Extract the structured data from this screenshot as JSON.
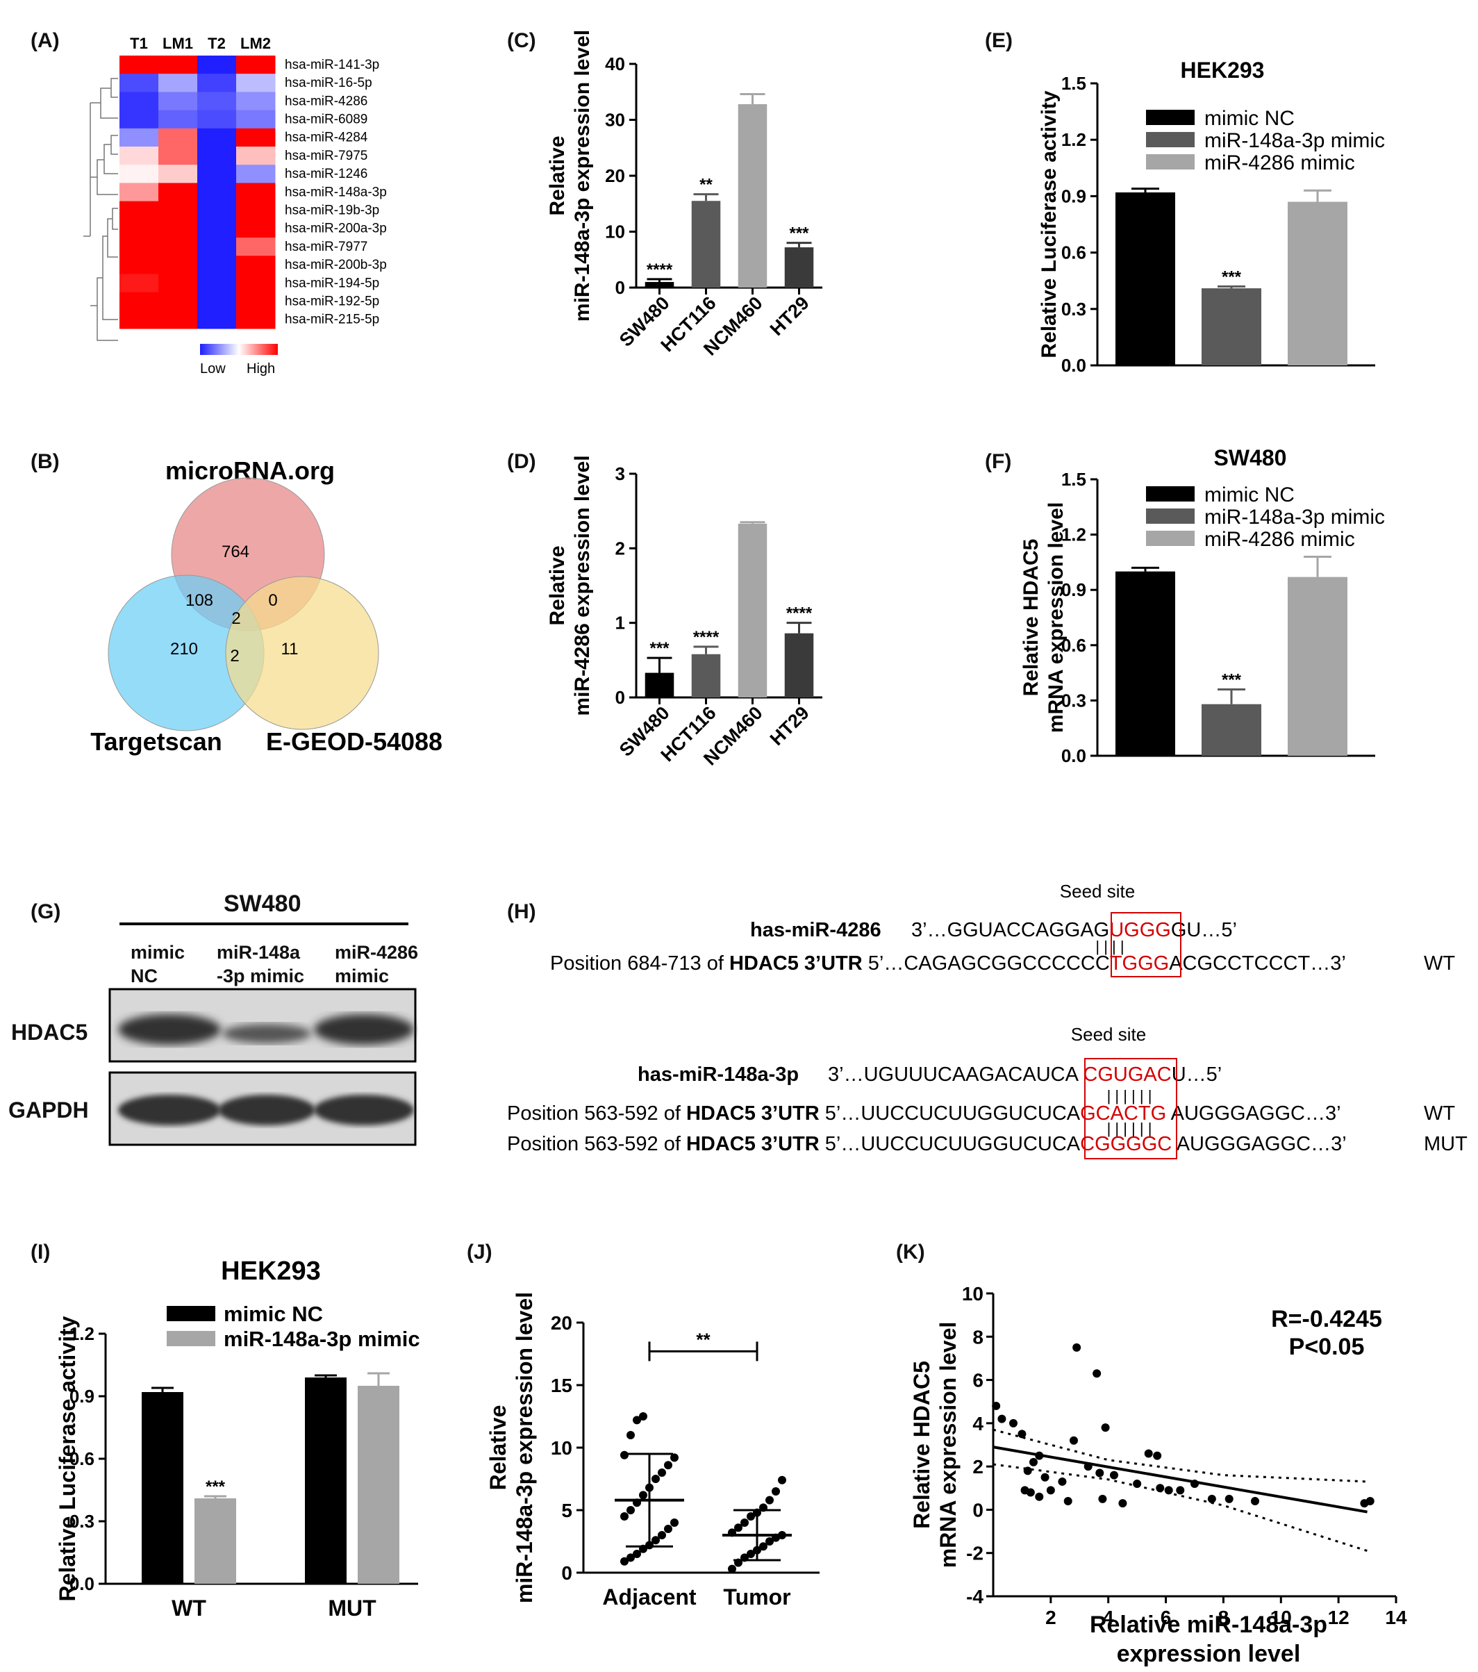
{
  "panel_labels": [
    "(A)",
    "(B)",
    "(C)",
    "(D)",
    "(E)",
    "(F)",
    "(G)",
    "(H)",
    "(I)",
    "(J)",
    "(K)"
  ],
  "colors": {
    "black": "#000000",
    "dark_gray": "#5a5a5a",
    "light_gray": "#a6a6a6",
    "heat_low": "#1f1fff",
    "heat_high": "#ff0000",
    "venn_red": "#e88a8a",
    "venn_blue": "#6ccff6",
    "venn_yellow": "#f5dc8c",
    "seed_red": "#d40000"
  },
  "chart_data": [
    {
      "id": "A",
      "type": "heatmap",
      "columns": [
        "T1",
        "LM1",
        "T2",
        "LM2"
      ],
      "rows": [
        "hsa-miR-141-3p",
        "hsa-miR-16-5p",
        "hsa-miR-4286",
        "hsa-miR-6089",
        "hsa-miR-4284",
        "hsa-miR-7975",
        "hsa-miR-1246",
        "hsa-miR-148a-3p",
        "hsa-miR-19b-3p",
        "hsa-miR-200a-3p",
        "hsa-miR-7977",
        "hsa-miR-200b-3p",
        "hsa-miR-194-5p",
        "hsa-miR-192-5p",
        "hsa-miR-215-5p"
      ],
      "values": [
        [
          1,
          1,
          -1,
          1
        ],
        [
          -0.8,
          -0.4,
          -0.85,
          -0.3
        ],
        [
          -0.9,
          -0.6,
          -0.75,
          -0.5
        ],
        [
          -0.9,
          -0.7,
          -0.8,
          -0.6
        ],
        [
          -0.5,
          0.6,
          -1,
          1
        ],
        [
          0.15,
          0.6,
          -1,
          0.25
        ],
        [
          0.05,
          0.2,
          -1,
          -0.5
        ],
        [
          0.4,
          1,
          -1,
          1
        ],
        [
          1,
          1,
          -1,
          1
        ],
        [
          1,
          1,
          -1,
          1
        ],
        [
          1,
          1,
          -1,
          0.6
        ],
        [
          1,
          1,
          -1,
          1
        ],
        [
          0.9,
          1,
          -1,
          1
        ],
        [
          1,
          1,
          -1,
          1
        ],
        [
          1,
          1,
          -1,
          1
        ]
      ],
      "legend": [
        "Low",
        "High"
      ]
    },
    {
      "id": "B",
      "type": "venn",
      "sets": [
        "microRNA.org",
        "Targetscan",
        "E-GEOD-54088"
      ],
      "regions": {
        "microrna_only": "764",
        "targetscan_only": "210",
        "geo_only": "11",
        "microrna_targetscan": "108",
        "microrna_geo": "0",
        "targetscan_geo": "2",
        "all": "2"
      }
    },
    {
      "id": "C",
      "type": "bar",
      "categories": [
        "SW480",
        "HCT116",
        "NCM460",
        "HT29"
      ],
      "values": [
        1,
        15.5,
        32.8,
        7.2
      ],
      "errors": [
        0.5,
        1.2,
        1.8,
        0.8
      ],
      "significance": [
        "****",
        "**",
        "",
        "***"
      ],
      "ylabel": [
        "Relative",
        "miR-148a-3p expression level"
      ],
      "ylim": [
        0,
        40
      ],
      "yticks": [
        "0",
        "10",
        "20",
        "30",
        "40"
      ]
    },
    {
      "id": "D",
      "type": "bar",
      "categories": [
        "SW480",
        "HCT116",
        "NCM460",
        "HT29"
      ],
      "values": [
        0.33,
        0.58,
        2.33,
        0.86
      ],
      "errors": [
        0.2,
        0.1,
        0.02,
        0.14
      ],
      "significance": [
        "***",
        "****",
        "",
        "****"
      ],
      "ylabel": [
        "Relative",
        "miR-4286 expression level"
      ],
      "ylim": [
        0,
        3
      ],
      "yticks": [
        "0",
        "1",
        "2",
        "3"
      ]
    },
    {
      "id": "E",
      "type": "bar",
      "title": "HEK293",
      "series": [
        {
          "name": "mimic NC",
          "value": 0.92,
          "error": 0.02
        },
        {
          "name": "miR-148a-3p mimic",
          "value": 0.41,
          "error": 0.01
        },
        {
          "name": "miR-4286 mimic",
          "value": 0.87,
          "error": 0.06
        }
      ],
      "significance": [
        "",
        "***",
        ""
      ],
      "ylabel": [
        "Relative Luciferase activity"
      ],
      "ylim": [
        0,
        1.5
      ],
      "yticks": [
        "0.0",
        "0.3",
        "0.6",
        "0.9",
        "1.2",
        "1.5"
      ]
    },
    {
      "id": "F",
      "type": "bar",
      "title": "SW480",
      "series": [
        {
          "name": "mimic NC",
          "value": 1.0,
          "error": 0.02
        },
        {
          "name": "miR-148a-3p mimic",
          "value": 0.28,
          "error": 0.08
        },
        {
          "name": "miR-4286 mimic",
          "value": 0.97,
          "error": 0.11
        }
      ],
      "significance": [
        "",
        "***",
        ""
      ],
      "ylabel": [
        "Relative HDAC5",
        "mRNA expression level"
      ],
      "ylim": [
        0,
        1.5
      ],
      "yticks": [
        "0.0",
        "0.3",
        "0.6",
        "0.9",
        "1.2",
        "1.5"
      ]
    },
    {
      "id": "I",
      "type": "bar",
      "title": "HEK293",
      "categories": [
        "WT",
        "MUT"
      ],
      "series": [
        {
          "name": "mimic  NC",
          "values": [
            0.92,
            0.99
          ],
          "errors": [
            0.02,
            0.01
          ]
        },
        {
          "name": "miR-148a-3p mimic",
          "values": [
            0.41,
            0.95
          ],
          "errors": [
            0.01,
            0.06
          ]
        }
      ],
      "significance": [
        "***",
        ""
      ],
      "ylabel": [
        "Relative Luciferase activity"
      ],
      "ylim": [
        0,
        1.2
      ],
      "yticks": [
        "0.0",
        "0.3",
        "0.6",
        "0.9",
        "1.2"
      ]
    },
    {
      "id": "J",
      "type": "scatter",
      "categories": [
        "Adjacent",
        "Tumor"
      ],
      "groups": [
        {
          "name": "Adjacent",
          "mean": 5.8,
          "sd_low": 2.1,
          "sd_high": 9.5,
          "points": [
            0.9,
            1.2,
            1.5,
            1.9,
            2.2,
            2.6,
            3.0,
            3.5,
            4.0,
            4.5,
            5.0,
            5.6,
            6.2,
            6.8,
            7.5,
            8.0,
            8.6,
            9.2,
            9.4,
            11.0,
            12.2,
            12.5
          ]
        },
        {
          "name": "Tumor",
          "mean": 3.0,
          "sd_low": 1.0,
          "sd_high": 5.0,
          "points": [
            0.3,
            0.8,
            1.2,
            1.5,
            1.8,
            2.1,
            2.5,
            2.8,
            3.0,
            3.2,
            3.6,
            4.0,
            4.5,
            4.8,
            5.2,
            5.8,
            6.5,
            7.4
          ]
        }
      ],
      "significance": "**",
      "ylabel": [
        "Relative",
        "miR-148a-3p expression level"
      ],
      "ylim": [
        0,
        20
      ],
      "yticks": [
        "0",
        "5",
        "10",
        "15",
        "20"
      ]
    },
    {
      "id": "K",
      "type": "scatter",
      "points": [
        [
          0.1,
          4.8
        ],
        [
          0.3,
          4.2
        ],
        [
          0.7,
          4.0
        ],
        [
          1.0,
          3.5
        ],
        [
          1.2,
          1.8
        ],
        [
          1.4,
          2.2
        ],
        [
          1.6,
          2.5
        ],
        [
          1.8,
          1.5
        ],
        [
          2.0,
          0.9
        ],
        [
          1.3,
          0.8
        ],
        [
          1.6,
          0.6
        ],
        [
          1.1,
          0.9
        ],
        [
          2.4,
          1.3
        ],
        [
          2.6,
          0.4
        ],
        [
          2.8,
          3.2
        ],
        [
          2.9,
          7.5
        ],
        [
          3.3,
          2.0
        ],
        [
          3.6,
          6.3
        ],
        [
          3.7,
          1.7
        ],
        [
          3.8,
          0.5
        ],
        [
          3.9,
          3.8
        ],
        [
          4.2,
          1.6
        ],
        [
          4.5,
          0.3
        ],
        [
          5.0,
          1.2
        ],
        [
          5.4,
          2.6
        ],
        [
          5.7,
          2.5
        ],
        [
          5.8,
          1.0
        ],
        [
          6.1,
          0.9
        ],
        [
          6.5,
          0.9
        ],
        [
          7.0,
          1.2
        ],
        [
          7.6,
          0.5
        ],
        [
          8.2,
          0.5
        ],
        [
          9.1,
          0.4
        ],
        [
          12.9,
          0.3
        ],
        [
          13.1,
          0.4
        ]
      ],
      "fit": {
        "x0": 0,
        "y0": 2.9,
        "x1": 13,
        "y1": -0.1
      },
      "ci_upper": [
        [
          0,
          3.7
        ],
        [
          4,
          2.3
        ],
        [
          8,
          1.6
        ],
        [
          13,
          1.3
        ]
      ],
      "ci_lower": [
        [
          0,
          2.1
        ],
        [
          4,
          1.4
        ],
        [
          8,
          0.2
        ],
        [
          13,
          -1.9
        ]
      ],
      "annotations": [
        "R=-0.4245",
        "P<0.05"
      ],
      "xlabel": [
        "Relative  miR-148a-3p",
        "expression level"
      ],
      "ylabel": [
        "Relative HDAC5",
        "mRNA expression level"
      ],
      "xlim": [
        0,
        14
      ],
      "ylim": [
        -4,
        10
      ],
      "xticks": [
        "2",
        "4",
        "6",
        "8",
        "10",
        "12",
        "14"
      ],
      "yticks": [
        "-4",
        "-2",
        "0",
        "2",
        "4",
        "6",
        "8",
        "10"
      ]
    }
  ],
  "blot_G": {
    "title": "SW480",
    "lanes": [
      "mimic\nNC",
      "miR-148a\n-3p mimic",
      "miR-4286\nmimic"
    ],
    "lane_line1": [
      "mimic",
      "miR-148a",
      "miR-4286"
    ],
    "lane_line2": [
      "NC",
      "-3p mimic",
      "mimic"
    ],
    "rows": [
      "HDAC5",
      "GAPDH"
    ]
  },
  "seq_H": {
    "seed1": "Seed site",
    "mir4286_name": "has-miR-4286",
    "mir4286_seq_a": "3’…GGUACCAGGAG",
    "mir4286_seed": "UGGG",
    "mir4286_seq_b": "GU…5’",
    "pos1_prefix": "Position 684-713 of ",
    "pos_gene": "HDAC5 3’UTR",
    "utr1_a": " 5’…CAGAGCGGCCCCCC",
    "utr1_seed": "TGGG",
    "utr1_b": "ACGCCTCCCT…3’",
    "wt": "WT",
    "seed2": "Seed site",
    "mir148_name": "has-miR-148a-3p",
    "mir148_seq_a": "3’…UGUUUCAAGACAUCA ",
    "mir148_seed": "CGUGAC",
    "mir148_seq_b": "U…5’",
    "pos2_prefix": "Position 563-592 of ",
    "utr2_a": " 5’…UUCCUCUUGGUCUCA",
    "utr2_seed": "GCACTG",
    "utr2_b": " AUGGGAGGC…3’",
    "utr3_seed": "CGGGGC",
    "mut": "MUT",
    "ticks4": "| | | |",
    "ticks6": "| | | | | |"
  }
}
